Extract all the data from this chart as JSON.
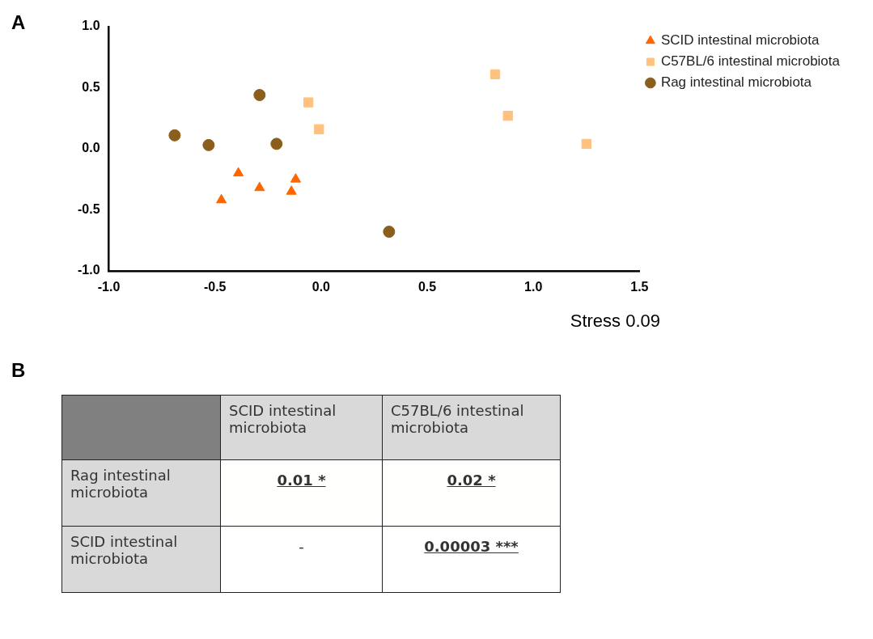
{
  "chart_data": [
    {
      "type": "scatter",
      "title": "A",
      "annotations": [
        "Stress 0.09"
      ],
      "legend": "top right",
      "grid": false,
      "xlim": [
        -1,
        1.5
      ],
      "xticks": [
        {
          "value": -1,
          "label": "-1.0"
        },
        {
          "value": -0.5,
          "label": "-0.5"
        },
        {
          "value": 0,
          "label": "0.0"
        },
        {
          "value": 0.5,
          "label": "0.5"
        },
        {
          "value": 1,
          "label": "1.0"
        },
        {
          "value": 1.5,
          "label": "1.5"
        }
      ],
      "ylim": [
        -1,
        1
      ],
      "yticks": [
        {
          "value": -1,
          "label": "-1.0"
        },
        {
          "value": -0.5,
          "label": "-0.5"
        },
        {
          "value": 0,
          "label": "0.0"
        },
        {
          "value": 0.5,
          "label": "0.5"
        },
        {
          "value": 1,
          "label": "1.0"
        }
      ],
      "series": [
        {
          "name": "SCID intestinal microbiota",
          "color": "#ff6600",
          "marker": "triangle",
          "x": [
            -0.39,
            -0.29,
            -0.47,
            -0.12,
            -0.14
          ],
          "values": [
            -0.2,
            -0.32,
            -0.42,
            -0.25,
            -0.35
          ]
        },
        {
          "name": "C57BL/6 intestinal microbiota",
          "color": "#ffc080",
          "marker": "square",
          "x": [
            -0.06,
            -0.01,
            0.82,
            0.88,
            1.25
          ],
          "values": [
            0.38,
            0.16,
            0.61,
            0.27,
            0.04
          ]
        },
        {
          "name": "Rag intestinal microbiota",
          "color": "#8b5e1e",
          "marker": "circle",
          "x": [
            -0.29,
            -0.69,
            -0.53,
            -0.21,
            0.32
          ],
          "values": [
            0.44,
            0.11,
            0.03,
            0.04,
            -0.68
          ]
        }
      ]
    },
    {
      "type": "heatmap",
      "title": "B",
      "categories": [
        "SCID intestinal microbiota",
        "C57BL/6 intestinal microbiota"
      ],
      "y_categories": [
        "Rag intestinal microbiota",
        "SCID intestinal microbiota"
      ],
      "cells": [
        [
          0.01,
          0.02
        ],
        [
          null,
          3e-05
        ]
      ],
      "cell_labels": [
        [
          "0.01 *",
          "0.02 *"
        ],
        [
          "-",
          "0.00003 ***"
        ]
      ]
    }
  ]
}
